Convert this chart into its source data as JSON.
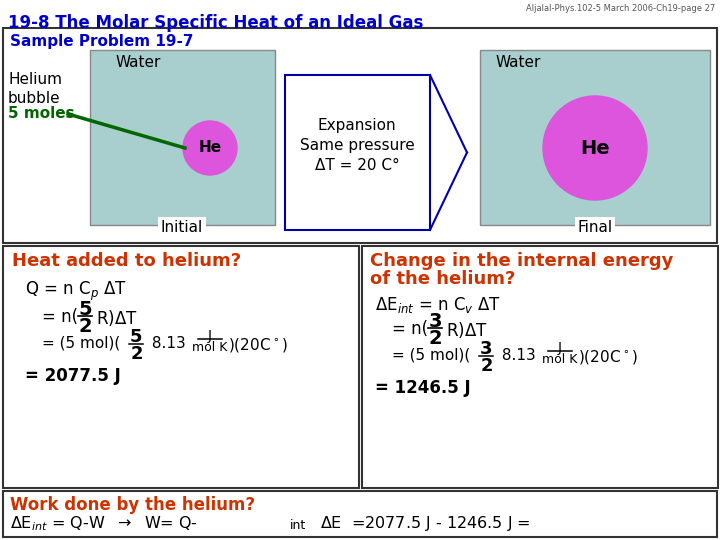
{
  "title_header": "Aljalal-Phys.102-5 March 2006-Ch19-page 27",
  "title_main": "19-8 The Molar Specific Heat of an Ideal Gas",
  "sample_problem": "Sample Problem 19-7",
  "helium_label": "Helium\nbubble",
  "moles_label": "5 moles",
  "water_label": "Water",
  "he_label": "He",
  "initial_label": "Initial",
  "final_label": "Final",
  "expansion_line1": "Expansion",
  "expansion_line2": "Same pressure",
  "expansion_line3": "ΔT = 20 C°",
  "left_question": "Heat added to helium?",
  "right_question_line1": "Change in the internal energy",
  "right_question_line2": "of the helium?",
  "bottom_question": "Work done by the helium?",
  "bg_color": "#ffffff",
  "title_color": "#0000cc",
  "sample_color": "#0000cc",
  "water_box_color": "#a8cece",
  "he_bubble_color": "#dd55dd",
  "question_color": "#cc3300",
  "border_color": "#000000",
  "green_line_color": "#006600",
  "arrow_color": "#0000aa",
  "moles_color": "#006600",
  "label_white_bg": "#ffffff"
}
